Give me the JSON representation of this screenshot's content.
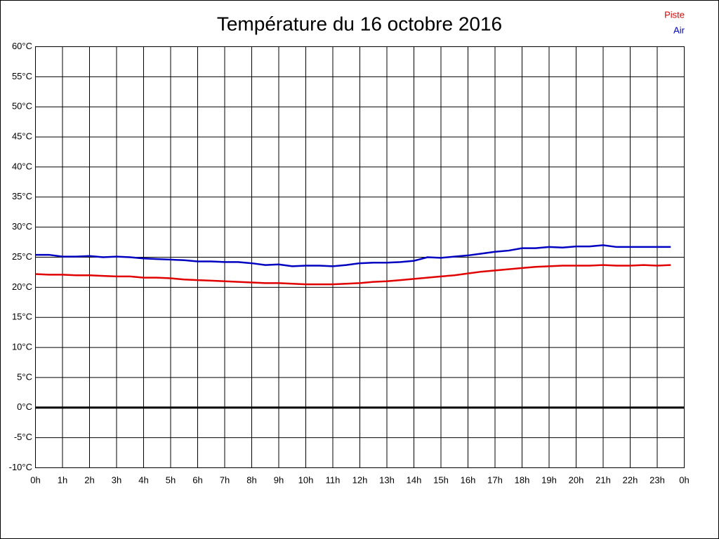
{
  "chart_data": {
    "type": "line",
    "title": "Température du 16 octobre 2016",
    "x": [
      0,
      0.5,
      1,
      1.5,
      2,
      2.5,
      3,
      3.5,
      4,
      4.5,
      5,
      5.5,
      6,
      6.5,
      7,
      7.5,
      8,
      8.5,
      9,
      9.5,
      10,
      10.5,
      11,
      11.5,
      12,
      12.5,
      13,
      13.5,
      14,
      14.5,
      15,
      15.5,
      16,
      16.5,
      17,
      17.5,
      18,
      18.5,
      19,
      19.5,
      20,
      20.5,
      21,
      21.5,
      22,
      22.5,
      23,
      23.5
    ],
    "series": [
      {
        "name": "Piste",
        "color": "#e00000",
        "values": [
          22.2,
          22.1,
          22.1,
          22.0,
          22.0,
          21.9,
          21.8,
          21.8,
          21.6,
          21.6,
          21.5,
          21.3,
          21.2,
          21.1,
          21.0,
          20.9,
          20.8,
          20.7,
          20.7,
          20.6,
          20.5,
          20.5,
          20.5,
          20.6,
          20.7,
          20.9,
          21.0,
          21.2,
          21.4,
          21.6,
          21.8,
          22.0,
          22.3,
          22.6,
          22.8,
          23.0,
          23.2,
          23.4,
          23.5,
          23.6,
          23.6,
          23.6,
          23.7,
          23.6,
          23.6,
          23.7,
          23.6,
          23.7
        ]
      },
      {
        "name": "Air",
        "color": "#0000c0",
        "values": [
          25.4,
          25.4,
          25.1,
          25.1,
          25.2,
          25.0,
          25.1,
          25.0,
          24.8,
          24.7,
          24.6,
          24.5,
          24.3,
          24.3,
          24.2,
          24.2,
          24.0,
          23.7,
          23.8,
          23.5,
          23.6,
          23.6,
          23.5,
          23.7,
          24.0,
          24.1,
          24.1,
          24.2,
          24.4,
          25.0,
          24.9,
          25.1,
          25.3,
          25.6,
          25.9,
          26.1,
          26.5,
          26.5,
          26.7,
          26.6,
          26.8,
          26.8,
          27.0,
          26.7,
          26.7,
          26.7,
          26.7,
          26.7
        ]
      }
    ],
    "xlim": [
      0,
      24
    ],
    "xticks": [
      {
        "value": 0,
        "label": "0h"
      },
      {
        "value": 1,
        "label": "1h"
      },
      {
        "value": 2,
        "label": "2h"
      },
      {
        "value": 3,
        "label": "3h"
      },
      {
        "value": 4,
        "label": "4h"
      },
      {
        "value": 5,
        "label": "5h"
      },
      {
        "value": 6,
        "label": "6h"
      },
      {
        "value": 7,
        "label": "7h"
      },
      {
        "value": 8,
        "label": "8h"
      },
      {
        "value": 9,
        "label": "9h"
      },
      {
        "value": 10,
        "label": "10h"
      },
      {
        "value": 11,
        "label": "11h"
      },
      {
        "value": 12,
        "label": "12h"
      },
      {
        "value": 13,
        "label": "13h"
      },
      {
        "value": 14,
        "label": "14h"
      },
      {
        "value": 15,
        "label": "15h"
      },
      {
        "value": 16,
        "label": "16h"
      },
      {
        "value": 17,
        "label": "17h"
      },
      {
        "value": 18,
        "label": "18h"
      },
      {
        "value": 19,
        "label": "19h"
      },
      {
        "value": 20,
        "label": "20h"
      },
      {
        "value": 21,
        "label": "21h"
      },
      {
        "value": 22,
        "label": "22h"
      },
      {
        "value": 23,
        "label": "23h"
      },
      {
        "value": 24,
        "label": "0h"
      }
    ],
    "ylim": [
      -10,
      60
    ],
    "yticks": [
      {
        "value": -10,
        "label": "-10°C"
      },
      {
        "value": -5,
        "label": "-5°C"
      },
      {
        "value": 0,
        "label": "0°C"
      },
      {
        "value": 5,
        "label": "5°C"
      },
      {
        "value": 10,
        "label": "10°C"
      },
      {
        "value": 15,
        "label": "15°C"
      },
      {
        "value": 20,
        "label": "20°C"
      },
      {
        "value": 25,
        "label": "25°C"
      },
      {
        "value": 30,
        "label": "30°C"
      },
      {
        "value": 35,
        "label": "35°C"
      },
      {
        "value": 40,
        "label": "40°C"
      },
      {
        "value": 45,
        "label": "45°C"
      },
      {
        "value": 50,
        "label": "50°C"
      },
      {
        "value": 55,
        "label": "55°C"
      },
      {
        "value": 60,
        "label": "60°C"
      }
    ],
    "grid": true,
    "zero_line": true,
    "legend": "top-right"
  }
}
